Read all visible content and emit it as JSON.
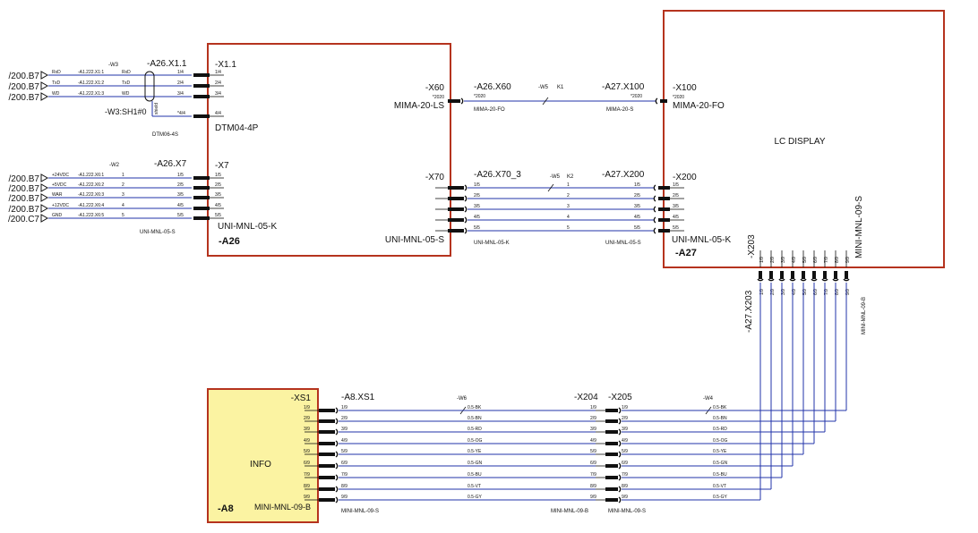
{
  "colors": {
    "box_border": "#b5331e",
    "wire": "#2233aa",
    "ref": "#228b22",
    "info_fill": "#fbf3a2",
    "lead": "#111111"
  },
  "refs": {
    "r1": "/200.B7",
    "r2": "/200.B7",
    "r3": "/200.B7",
    "r4": "/200.B7",
    "r5": "/200.B7",
    "r6": "/200.B7",
    "r7": "/200.B7",
    "r8": "/200.C7"
  },
  "a26": {
    "name": "-A26",
    "x1": {
      "tag": "-X1.1",
      "part": "DTM04-4P",
      "pins": [
        "1/4",
        "2/4",
        "3/4",
        "4/4"
      ]
    },
    "x7": {
      "tag": "-X7",
      "part": "UNI-MNL-05-K",
      "pins": [
        "1/5",
        "2/5",
        "3/5",
        "4/5",
        "5/5"
      ]
    },
    "x60": {
      "tag": "-X60",
      "sub": "*2020",
      "part": "MIMA-20-LS"
    },
    "x70": {
      "tag": "-X70",
      "part": "UNI-MNL-05-S",
      "pins": [
        "1/5",
        "2/5",
        "3/5",
        "4/5",
        "5/5"
      ]
    }
  },
  "w3": {
    "cable": "-W3",
    "plug": "-A26.X1.1",
    "plug_part": "DTM06-4S",
    "shield": "-W3:SH1#0",
    "shield_pin": "*4/4",
    "shield_wire": "shield",
    "names": [
      "RxD",
      "TxD",
      "WD"
    ],
    "signals": [
      "-A1.222.X1:1",
      "-A1.222.X1:2",
      "-A1.222.X1:3"
    ],
    "codes": [
      "RxD",
      "TxD",
      "WD"
    ]
  },
  "w2": {
    "cable": "-W2",
    "plug": "-A26.X7",
    "plug_part": "UNI-MNL-05-S",
    "names": [
      "+24VDC",
      "+5VDC",
      "WAR",
      "+12VDC",
      "GND"
    ],
    "signals": [
      "-A1.222.X6:1",
      "-A1.222.X6:2",
      "-A1.222.X6:3",
      "-A1.222.X6:4",
      "-A1.222.X6:5"
    ],
    "wires": [
      "1",
      "2",
      "3",
      "4",
      "5"
    ],
    "pins": [
      "1/5",
      "2/5",
      "3/5",
      "4/5",
      "5/5"
    ]
  },
  "w5k1": {
    "left_tag": "-A26.X60",
    "left_sub": "*2020",
    "left_part": "MIMA-20-FO",
    "cable": "-W5",
    "core": "K1",
    "right_tag": "-A27.X100",
    "right_sub": "*2020",
    "right_part": "MIMA-20-S"
  },
  "w5k2": {
    "left_tag": "-A26.X70_3",
    "left_part": "UNI-MNL-05-K",
    "cable": "-W5",
    "core": "K2",
    "right_tag": "-A27.X200",
    "right_part": "UNI-MNL-05-S",
    "left_pins": [
      "1/5",
      "2/5",
      "3/5",
      "4/5",
      "5/5"
    ],
    "wires": [
      "1",
      "2",
      "3",
      "4",
      "5"
    ],
    "right_pins": [
      "1/5",
      "2/5",
      "3/5",
      "4/5",
      "5/5"
    ]
  },
  "a27": {
    "name": "-A27",
    "label": "LC DISPLAY",
    "x100": {
      "tag": "-X100",
      "sub": "*2020",
      "part": "MIMA-20-FO"
    },
    "x200": {
      "tag": "-X200",
      "part": "UNI-MNL-05-K",
      "pins": [
        "1/5",
        "2/5",
        "3/5",
        "4/5",
        "5/5"
      ]
    },
    "x203": {
      "tag": "-X203",
      "part": "MINI-MNL-09-S",
      "pins": [
        "1/9",
        "2/9",
        "3/9",
        "4/9",
        "5/9",
        "6/9",
        "7/9",
        "8/9",
        "9/9"
      ]
    },
    "plug": {
      "tag": "-A27.X203",
      "part": "MINI-MNL-09-B",
      "pins": [
        "1/9",
        "2/9",
        "3/9",
        "4/9",
        "5/9",
        "6/9",
        "7/9",
        "8/9",
        "9/9"
      ]
    }
  },
  "a8": {
    "name": "-A8",
    "label": "INFO",
    "xs1": {
      "tag": "-XS1",
      "part": "MINI-MNL-09-B",
      "pins": [
        "1/9",
        "2/9",
        "3/9",
        "4/9",
        "5/9",
        "6/9",
        "7/9",
        "8/9",
        "9/9"
      ]
    }
  },
  "w6": {
    "plug": "-A8.XS1",
    "plug_part": "MINI-MNL-09-S",
    "plug_pins": [
      "1/9",
      "2/9",
      "3/9",
      "4/9",
      "5/9",
      "6/9",
      "7/9",
      "8/9",
      "9/9"
    ],
    "cable": "-W6",
    "codes": [
      "0.5-BK",
      "0.5-BN",
      "0.5-RD",
      "0.5-OG",
      "0.5-YE",
      "0.5-GN",
      "0.5-BU",
      "0.5-VT",
      "0.5-GY"
    ]
  },
  "x204": {
    "tag": "-X204",
    "part": "MINI-MNL-09-B",
    "pins": [
      "1/9",
      "2/9",
      "3/9",
      "4/9",
      "5/9",
      "6/9",
      "7/9",
      "8/9",
      "9/9"
    ]
  },
  "x205": {
    "tag": "-X205",
    "part": "MINI-MNL-09-S",
    "pins": [
      "1/9",
      "2/9",
      "3/9",
      "4/9",
      "5/9",
      "6/9",
      "7/9",
      "8/9",
      "9/9"
    ]
  },
  "w4": {
    "cable": "-W4",
    "codes": [
      "0.5-BK",
      "0.5-BN",
      "0.5-RD",
      "0.5-OG",
      "0.5-YE",
      "0.5-GN",
      "0.5-BU",
      "0.5-VT",
      "0.5-GY"
    ]
  }
}
